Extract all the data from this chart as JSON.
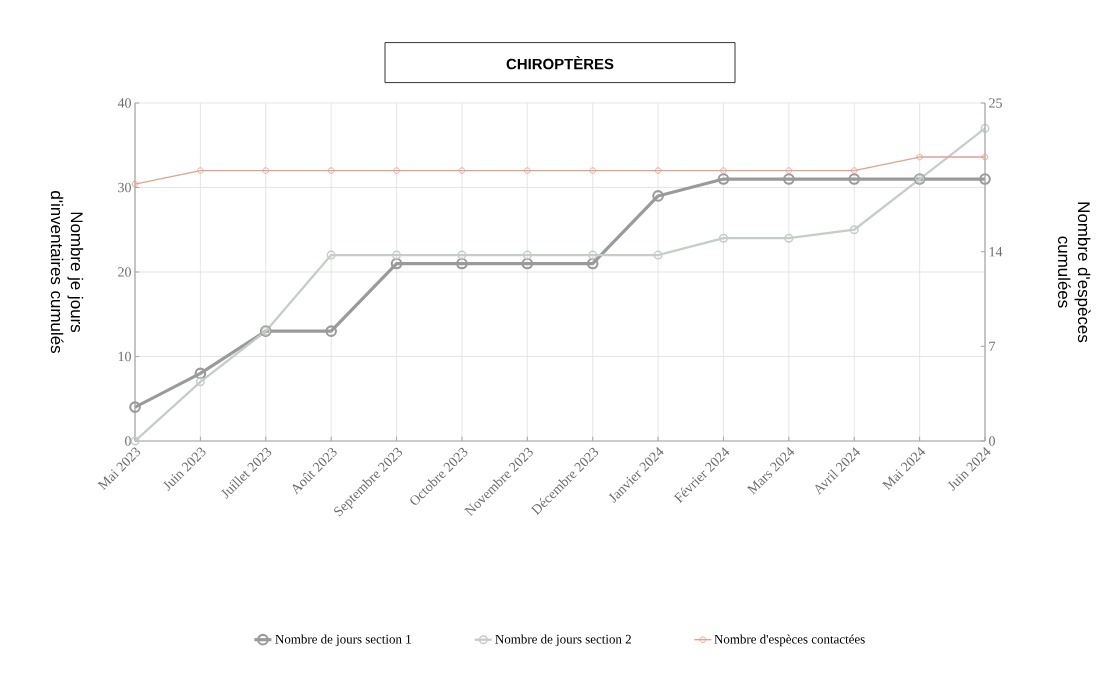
{
  "chart_data": {
    "type": "line",
    "title": "CHIROPTÈRES",
    "ylabel": "Nombre je jours d'inventaires cumulés",
    "y2label": "Nombre d'espèces cumulées",
    "categories": [
      "Mai 2023",
      "Juin 2023",
      "Juillet 2023",
      "Août 2023",
      "Septembre 2023",
      "Octobre 2023",
      "Novembre 2023",
      "Décembre 2023",
      "Janvier 2024",
      "Février 2024",
      "Mars 2024",
      "Avril 2024",
      "Mai 2024",
      "Juin 2024"
    ],
    "series": [
      {
        "name": "Nombre de jours section 1",
        "color": "#9a9a9a",
        "values": [
          4,
          8,
          13,
          13,
          21,
          21,
          21,
          21,
          29,
          31,
          31,
          31,
          31,
          31
        ]
      },
      {
        "name": "Nombre de jours section 2",
        "color": "#c5cec6",
        "values": [
          0,
          7,
          13,
          22,
          22,
          22,
          22,
          22,
          22,
          24,
          24,
          25,
          31,
          37
        ]
      },
      {
        "name": "Nombre d'espèces contactées",
        "color": "#e3a08e",
        "axis": "y2",
        "values": [
          19,
          20,
          20,
          20,
          20,
          20,
          20,
          20,
          20,
          20,
          20,
          20,
          21,
          21
        ]
      }
    ],
    "ylim": [
      0,
      40
    ],
    "yticks": [
      0,
      10,
      20,
      30,
      40
    ],
    "y2lim": [
      0,
      25
    ],
    "y2ticks": [
      0,
      7,
      14,
      25
    ],
    "grid": true,
    "legend": "bottom",
    "marker": "circle",
    "line_style": "solid"
  }
}
